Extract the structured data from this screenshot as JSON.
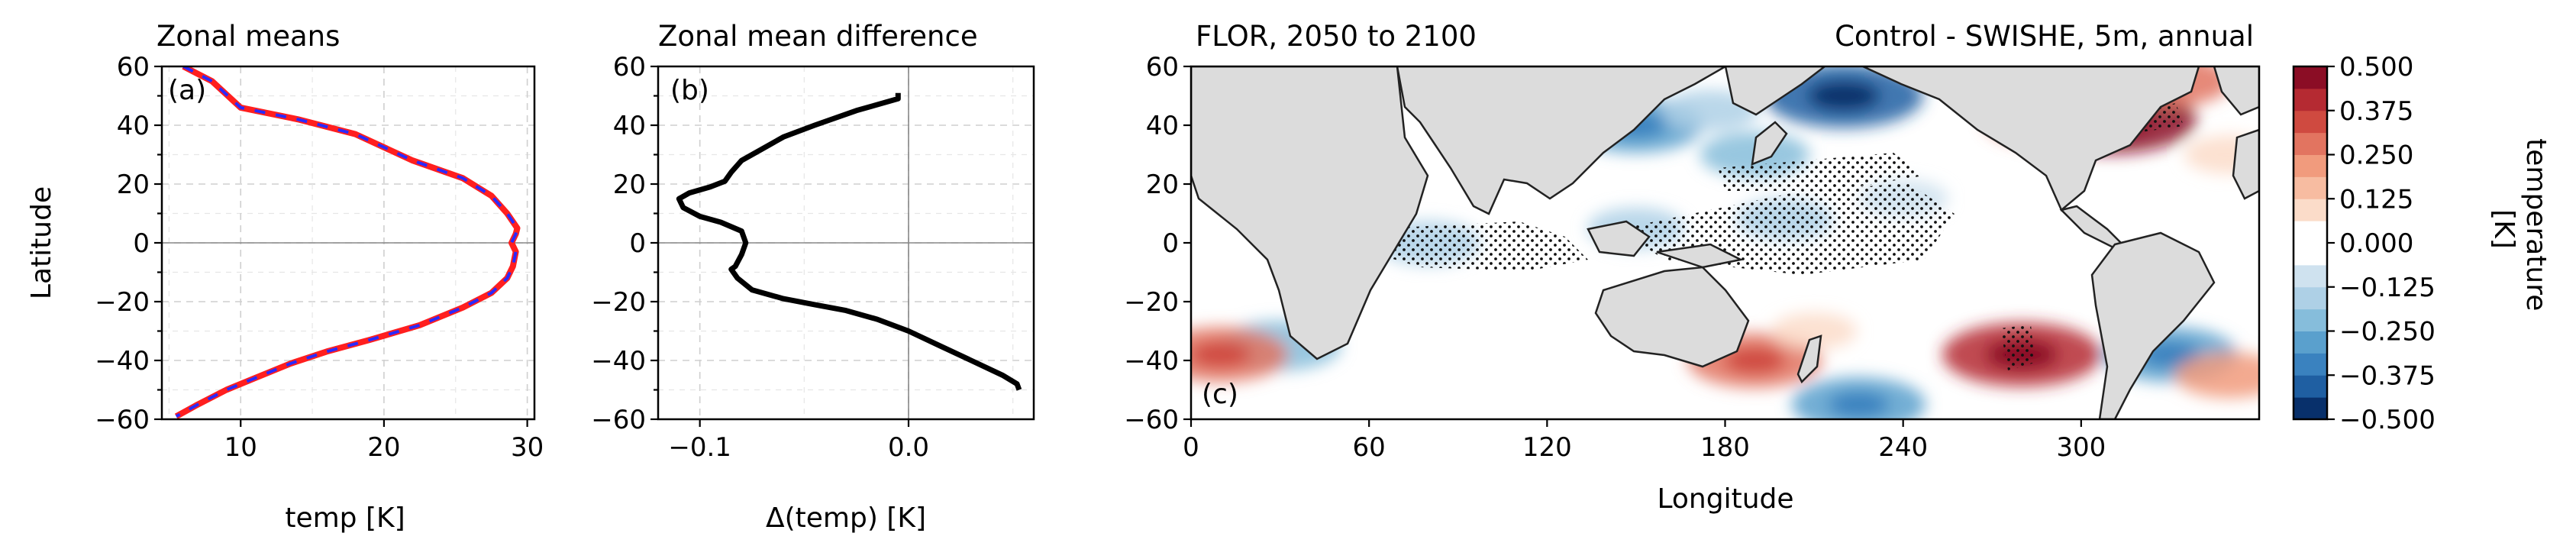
{
  "colors": {
    "control_line": "#ff1f1f",
    "swishe_line": "#2a2aff",
    "diff_line": "#000000",
    "land": "#dcdcdc",
    "coast": "#222222"
  },
  "colorbar": {
    "label": "temperature\n[K]",
    "levels": [
      -0.5,
      -0.4375,
      -0.375,
      -0.3125,
      -0.25,
      -0.1875,
      -0.125,
      -0.0625,
      0.0,
      0.0625,
      0.125,
      0.1875,
      0.25,
      0.3125,
      0.375,
      0.4375,
      0.5
    ],
    "tick_labels": [
      "0.500",
      "0.375",
      "0.250",
      "0.125",
      "0.000",
      "−0.125",
      "−0.250",
      "−0.375",
      "−0.500"
    ],
    "colors": [
      "#08306b",
      "#1f5fa2",
      "#3a82bf",
      "#5aa0cd",
      "#86bddb",
      "#aed0e6",
      "#cfe2ef",
      "#ffffff",
      "#ffffff",
      "#fbdcc9",
      "#f7bca1",
      "#f19b7d",
      "#e27460",
      "#cf4a40",
      "#b52a32",
      "#8b0d25"
    ]
  },
  "chart_data": [
    {
      "type": "line",
      "panel_label": "(a)",
      "title": "Zonal means",
      "xlabel": "temp [K]",
      "ylabel": "Latitude",
      "xlim": [
        4.5,
        30.5
      ],
      "ylim": [
        -60,
        60
      ],
      "xticks": [
        "10",
        "20",
        "30"
      ],
      "yticks": [
        "60",
        "40",
        "20",
        "0",
        "−20",
        "−40",
        "−60"
      ],
      "grid": true,
      "series": [
        {
          "points": [
            [
              6,
              60
            ],
            [
              8,
              55
            ],
            [
              10,
              46
            ],
            [
              14,
              42
            ],
            [
              18,
              37
            ],
            [
              22,
              28
            ],
            [
              25.5,
              22
            ],
            [
              27.5,
              16
            ],
            [
              28.6,
              10
            ],
            [
              29.3,
              5
            ],
            [
              29.2,
              3
            ],
            [
              28.9,
              0
            ],
            [
              29.2,
              -3
            ],
            [
              29.0,
              -8
            ],
            [
              28.6,
              -12
            ],
            [
              27.5,
              -17
            ],
            [
              25.5,
              -22
            ],
            [
              22.5,
              -28
            ],
            [
              19,
              -33
            ],
            [
              16,
              -37
            ],
            [
              13.5,
              -41
            ],
            [
              11,
              -46
            ],
            [
              9,
              -50
            ],
            [
              7,
              -55
            ],
            [
              5.5,
              -59
            ]
          ]
        },
        {
          "points": [
            [
              6,
              60
            ],
            [
              8,
              55
            ],
            [
              10,
              46
            ],
            [
              14,
              42
            ],
            [
              18,
              37
            ],
            [
              22,
              28
            ],
            [
              25.5,
              22
            ],
            [
              27.5,
              16
            ],
            [
              28.6,
              10
            ],
            [
              29.3,
              5
            ],
            [
              29.2,
              3
            ],
            [
              28.9,
              0
            ],
            [
              29.2,
              -3
            ],
            [
              29.0,
              -8
            ],
            [
              28.6,
              -12
            ],
            [
              27.5,
              -17
            ],
            [
              25.5,
              -22
            ],
            [
              22.5,
              -28
            ],
            [
              19,
              -33
            ],
            [
              16,
              -37
            ],
            [
              13.5,
              -41
            ],
            [
              11,
              -46
            ],
            [
              9,
              -50
            ],
            [
              7,
              -55
            ],
            [
              5.5,
              -59
            ]
          ]
        }
      ]
    },
    {
      "type": "line",
      "panel_label": "(b)",
      "title": "Zonal mean difference",
      "xlabel": "Δ(temp) [K]",
      "xlim": [
        -0.12,
        0.06
      ],
      "ylim": [
        -60,
        60
      ],
      "xticks": [
        "−0.1",
        "0.0"
      ],
      "yticks": [
        "60",
        "40",
        "20",
        "0",
        "−20",
        "−40",
        "−60"
      ],
      "grid": true,
      "series": [
        {
          "points": [
            [
              -0.005,
              51
            ],
            [
              -0.005,
              49
            ],
            [
              -0.025,
              45
            ],
            [
              -0.045,
              40
            ],
            [
              -0.06,
              36
            ],
            [
              -0.07,
              32
            ],
            [
              -0.08,
              28
            ],
            [
              -0.085,
              24
            ],
            [
              -0.088,
              21
            ],
            [
              -0.095,
              19
            ],
            [
              -0.105,
              17
            ],
            [
              -0.11,
              15
            ],
            [
              -0.108,
              12
            ],
            [
              -0.1,
              9
            ],
            [
              -0.09,
              7
            ],
            [
              -0.08,
              4
            ],
            [
              -0.078,
              0
            ],
            [
              -0.08,
              -4
            ],
            [
              -0.083,
              -8
            ],
            [
              -0.085,
              -9
            ],
            [
              -0.082,
              -12
            ],
            [
              -0.075,
              -16
            ],
            [
              -0.06,
              -19
            ],
            [
              -0.045,
              -21
            ],
            [
              -0.03,
              -23
            ],
            [
              -0.015,
              -26
            ],
            [
              0.0,
              -30
            ],
            [
              0.015,
              -35
            ],
            [
              0.03,
              -40
            ],
            [
              0.045,
              -45
            ],
            [
              0.052,
              -48
            ],
            [
              0.053,
              -50
            ]
          ]
        }
      ]
    },
    {
      "type": "heatmap",
      "panel_label": "(c)",
      "title": "FLOR, 2050 to 2100",
      "title_right": "Control - SWISHE, 5m, annual",
      "xlabel": "Longitude",
      "xlim": [
        0,
        360
      ],
      "ylim": [
        -60,
        60
      ],
      "xticks": [
        "0",
        "60",
        "120",
        "180",
        "240",
        "300"
      ],
      "yticks": [
        "60",
        "40",
        "20",
        "0",
        "−20",
        "−40",
        "−60"
      ],
      "anomalies": [
        {
          "lon": 220,
          "lat": 50,
          "value": -0.4
        },
        {
          "lon": 150,
          "lat": 40,
          "value": -0.3
        },
        {
          "lon": 190,
          "lat": 30,
          "value": -0.2
        },
        {
          "lon": 175,
          "lat": 45,
          "value": -0.15
        },
        {
          "lon": 80,
          "lat": 0,
          "value": -0.18
        },
        {
          "lon": 150,
          "lat": 5,
          "value": -0.15
        },
        {
          "lon": 200,
          "lat": 8,
          "value": -0.15
        },
        {
          "lon": 240,
          "lat": 15,
          "value": -0.12
        },
        {
          "lon": 30,
          "lat": -35,
          "value": -0.25
        },
        {
          "lon": 225,
          "lat": -55,
          "value": -0.3
        },
        {
          "lon": 330,
          "lat": -38,
          "value": -0.3
        },
        {
          "lon": 310,
          "lat": 42,
          "value": 0.45
        },
        {
          "lon": 290,
          "lat": 42,
          "value": 0.3
        },
        {
          "lon": 330,
          "lat": 55,
          "value": 0.25
        },
        {
          "lon": 280,
          "lat": -38,
          "value": 0.4
        },
        {
          "lon": 190,
          "lat": -40,
          "value": 0.3
        },
        {
          "lon": 10,
          "lat": -38,
          "value": 0.3
        },
        {
          "lon": 350,
          "lat": -45,
          "value": 0.2
        },
        {
          "lon": 210,
          "lat": -30,
          "value": 0.1
        },
        {
          "lon": 350,
          "lat": 30,
          "value": 0.12
        }
      ]
    }
  ]
}
